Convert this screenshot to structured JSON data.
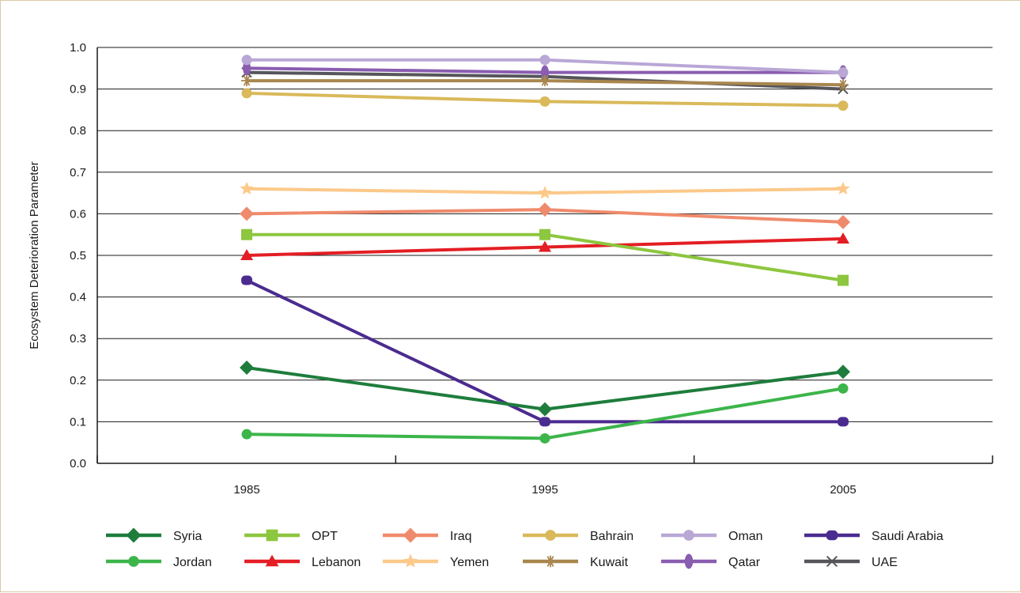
{
  "chart_data": {
    "type": "line",
    "title": "",
    "xlabel": "",
    "ylabel": "Ecosystem Deterioration Parameter",
    "ylim": [
      0,
      1
    ],
    "grid": "horizontal",
    "legend": "bottom",
    "x": [
      "1985",
      "1995",
      "2005"
    ],
    "y_ticks": [
      "0.0",
      "0.1",
      "0.2",
      "0.3",
      "0.4",
      "0.5",
      "0.6",
      "0.7",
      "0.8",
      "0.9",
      "1.0"
    ],
    "series": [
      {
        "name": "Syria",
        "values": [
          0.23,
          0.13,
          0.22
        ],
        "color": "#1e7d3c",
        "marker": "diamond"
      },
      {
        "name": "Jordan",
        "values": [
          0.07,
          0.06,
          0.18
        ],
        "color": "#3cb54a",
        "marker": "circle"
      },
      {
        "name": "OPT",
        "values": [
          0.55,
          0.55,
          0.44
        ],
        "color": "#8dc63f",
        "marker": "square"
      },
      {
        "name": "Lebanon",
        "values": [
          0.5,
          0.52,
          0.54
        ],
        "color": "#e31e24",
        "marker": "triangle"
      },
      {
        "name": "Iraq",
        "values": [
          0.6,
          0.61,
          0.58
        ],
        "color": "#f08a6c",
        "marker": "diamond"
      },
      {
        "name": "Yemen",
        "values": [
          0.66,
          0.65,
          0.66
        ],
        "color": "#fcc98a",
        "marker": "star"
      },
      {
        "name": "Bahrain",
        "values": [
          0.89,
          0.87,
          0.86
        ],
        "color": "#d9b95a",
        "marker": "circle"
      },
      {
        "name": "Kuwait",
        "values": [
          0.92,
          0.92,
          0.91
        ],
        "color": "#a8864e",
        "marker": "asterisk"
      },
      {
        "name": "Oman",
        "values": [
          0.97,
          0.97,
          0.94
        ],
        "color": "#b9a7d6",
        "marker": "circle"
      },
      {
        "name": "Qatar",
        "values": [
          0.95,
          0.94,
          0.94
        ],
        "color": "#8a5db0",
        "marker": "ellipse"
      },
      {
        "name": "Saudi Arabia",
        "values": [
          0.44,
          0.1,
          0.1
        ],
        "color": "#4b2b8f",
        "marker": "pill"
      },
      {
        "name": "UAE",
        "values": [
          0.94,
          0.93,
          0.9
        ],
        "color": "#55555a",
        "marker": "x"
      }
    ]
  }
}
